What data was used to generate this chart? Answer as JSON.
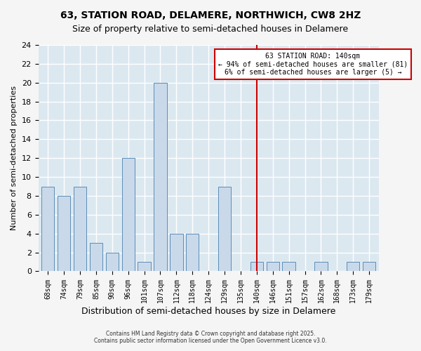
{
  "title": "63, STATION ROAD, DELAMERE, NORTHWICH, CW8 2HZ",
  "subtitle": "Size of property relative to semi-detached houses in Delamere",
  "xlabel": "Distribution of semi-detached houses by size in Delamere",
  "ylabel": "Number of semi-detached properties",
  "bar_labels": [
    "68sqm",
    "74sqm",
    "79sqm",
    "85sqm",
    "90sqm",
    "96sqm",
    "101sqm",
    "107sqm",
    "112sqm",
    "118sqm",
    "124sqm",
    "129sqm",
    "135sqm",
    "140sqm",
    "146sqm",
    "151sqm",
    "157sqm",
    "162sqm",
    "168sqm",
    "173sqm",
    "179sqm"
  ],
  "bar_values": [
    9,
    8,
    9,
    3,
    2,
    12,
    1,
    20,
    4,
    4,
    0,
    9,
    0,
    1,
    1,
    1,
    0,
    1,
    0,
    1,
    1
  ],
  "bar_color": "#c9d9ea",
  "bar_edgecolor": "#5b8db8",
  "highlight_index": 13,
  "highlight_color": "#cc0000",
  "annotation_title": "63 STATION ROAD: 140sqm",
  "annotation_line1": "← 94% of semi-detached houses are smaller (81)",
  "annotation_line2": "6% of semi-detached houses are larger (5) →",
  "ylim": [
    0,
    24
  ],
  "yticks": [
    0,
    2,
    4,
    6,
    8,
    10,
    12,
    14,
    16,
    18,
    20,
    22,
    24
  ],
  "plot_bg_color": "#dce8f0",
  "fig_bg_color": "#f5f5f5",
  "grid_color": "#ffffff",
  "xlabel_fontsize": 9,
  "ylabel_fontsize": 8,
  "title_fontsize": 10,
  "subtitle_fontsize": 9,
  "footnote1": "Contains HM Land Registry data © Crown copyright and database right 2025.",
  "footnote2": "Contains public sector information licensed under the Open Government Licence v3.0."
}
